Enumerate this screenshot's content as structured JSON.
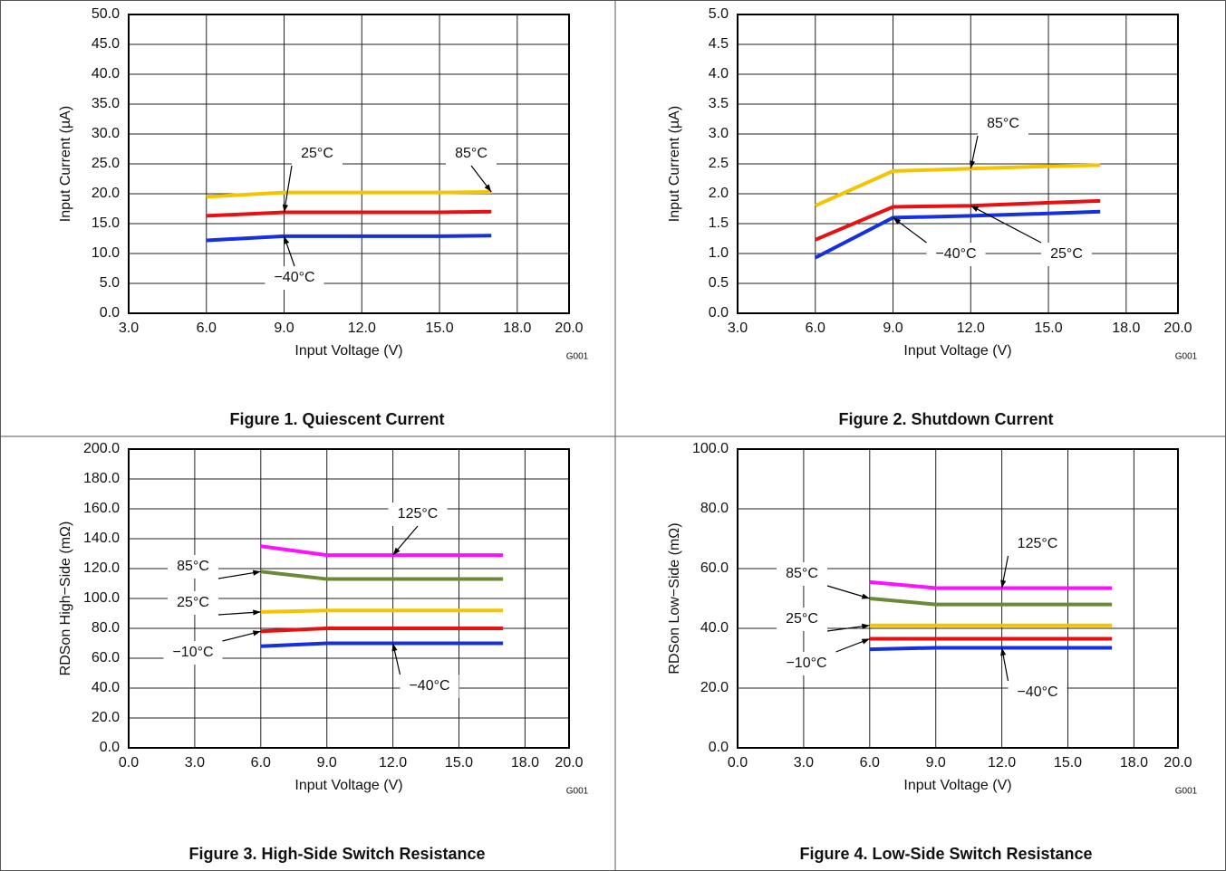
{
  "chart_data": [
    {
      "type": "line",
      "title": "Figure 1. Quiescent Current",
      "xlabel": "Input Voltage (V)",
      "ylabel": "Input Current (µA)",
      "note": "G001",
      "x": [
        6,
        9,
        12,
        15,
        17
      ],
      "series": [
        {
          "name": "85°C",
          "color": "#f5c400",
          "values": [
            19.5,
            20.2,
            20.2,
            20.2,
            20.3
          ]
        },
        {
          "name": "25°C",
          "color": "#e81010",
          "values": [
            16.3,
            16.9,
            16.9,
            16.9,
            17.0
          ]
        },
        {
          "name": "−40°C",
          "color": "#1530e0",
          "values": [
            12.2,
            12.9,
            12.9,
            12.9,
            13.0
          ]
        }
      ],
      "xlim": [
        3,
        20
      ],
      "ylim": [
        0,
        50
      ],
      "xticks": [
        {
          "value": 3,
          "label": "3.0"
        },
        {
          "value": 6,
          "label": "6.0"
        },
        {
          "value": 9,
          "label": "9.0"
        },
        {
          "value": 12,
          "label": "12.0"
        },
        {
          "value": 15,
          "label": "15.0"
        },
        {
          "value": 18,
          "label": "18.0"
        },
        {
          "value": 20,
          "label": "20.0"
        }
      ],
      "yticks": [
        {
          "value": 0,
          "label": "0.0"
        },
        {
          "value": 5,
          "label": "5.0"
        },
        {
          "value": 10,
          "label": "10.0"
        },
        {
          "value": 15,
          "label": "15.0"
        },
        {
          "value": 20,
          "label": "20.0"
        },
        {
          "value": 25,
          "label": "25.0"
        },
        {
          "value": 30,
          "label": "30.0"
        },
        {
          "value": 35,
          "label": "35.0"
        },
        {
          "value": 40,
          "label": "40.0"
        },
        {
          "value": 45,
          "label": "45.0"
        },
        {
          "value": 50,
          "label": "50.0"
        }
      ],
      "grid": true
    },
    {
      "type": "line",
      "title": "Figure 2. Shutdown Current",
      "xlabel": "Input Voltage (V)",
      "ylabel": "Input Current (µA)",
      "note": "G001",
      "x": [
        6,
        9,
        12,
        15,
        17
      ],
      "series": [
        {
          "name": "85°C",
          "color": "#f5c400",
          "values": [
            1.8,
            2.38,
            2.42,
            2.46,
            2.48
          ]
        },
        {
          "name": "25°C",
          "color": "#e81010",
          "values": [
            1.23,
            1.78,
            1.8,
            1.85,
            1.88
          ]
        },
        {
          "name": "−40°C",
          "color": "#1530e0",
          "values": [
            0.93,
            1.6,
            1.63,
            1.67,
            1.7
          ]
        }
      ],
      "xlim": [
        3,
        20
      ],
      "ylim": [
        0,
        5
      ],
      "xticks": [
        {
          "value": 3,
          "label": "3.0"
        },
        {
          "value": 6,
          "label": "6.0"
        },
        {
          "value": 9,
          "label": "9.0"
        },
        {
          "value": 12,
          "label": "12.0"
        },
        {
          "value": 15,
          "label": "15.0"
        },
        {
          "value": 18,
          "label": "18.0"
        },
        {
          "value": 20,
          "label": "20.0"
        }
      ],
      "yticks": [
        {
          "value": 0,
          "label": "0.0"
        },
        {
          "value": 0.5,
          "label": "0.5"
        },
        {
          "value": 1,
          "label": "1.0"
        },
        {
          "value": 1.5,
          "label": "1.5"
        },
        {
          "value": 2,
          "label": "2.0"
        },
        {
          "value": 2.5,
          "label": "2.5"
        },
        {
          "value": 3,
          "label": "3.0"
        },
        {
          "value": 3.5,
          "label": "3.5"
        },
        {
          "value": 4,
          "label": "4.0"
        },
        {
          "value": 4.5,
          "label": "4.5"
        },
        {
          "value": 5,
          "label": "5.0"
        }
      ],
      "grid": true
    },
    {
      "type": "line",
      "title": "Figure 3. High-Side Switch Resistance",
      "xlabel": "Input Voltage (V)",
      "ylabel": "RDSon High−Side (mΩ)",
      "note": "G001",
      "x": [
        6,
        9,
        12,
        15,
        17
      ],
      "series": [
        {
          "name": "125°C",
          "color": "#ff10ff",
          "values": [
            135,
            129,
            129,
            129,
            129
          ]
        },
        {
          "name": "85°C",
          "color": "#6a8a3a",
          "values": [
            118,
            113,
            113,
            113,
            113
          ]
        },
        {
          "name": "25°C",
          "color": "#f5c400",
          "values": [
            91,
            92,
            92,
            92,
            92
          ]
        },
        {
          "name": "−10°C",
          "color": "#e81010",
          "values": [
            78,
            80,
            80,
            80,
            80
          ]
        },
        {
          "name": "−40°C",
          "color": "#1530e0",
          "values": [
            68,
            70,
            70,
            70,
            70
          ]
        }
      ],
      "xlim": [
        0,
        20
      ],
      "ylim": [
        0,
        200
      ],
      "xticks": [
        {
          "value": 0,
          "label": "0.0"
        },
        {
          "value": 3,
          "label": "3.0"
        },
        {
          "value": 6,
          "label": "6.0"
        },
        {
          "value": 9,
          "label": "9.0"
        },
        {
          "value": 12,
          "label": "12.0"
        },
        {
          "value": 15,
          "label": "15.0"
        },
        {
          "value": 18,
          "label": "18.0"
        },
        {
          "value": 20,
          "label": "20.0"
        }
      ],
      "yticks": [
        {
          "value": 0,
          "label": "0.0"
        },
        {
          "value": 20,
          "label": "20.0"
        },
        {
          "value": 40,
          "label": "40.0"
        },
        {
          "value": 60,
          "label": "60.0"
        },
        {
          "value": 80,
          "label": "80.0"
        },
        {
          "value": 100,
          "label": "100.0"
        },
        {
          "value": 120,
          "label": "120.0"
        },
        {
          "value": 140,
          "label": "140.0"
        },
        {
          "value": 160,
          "label": "160.0"
        },
        {
          "value": 180,
          "label": "180.0"
        },
        {
          "value": 200,
          "label": "200.0"
        }
      ],
      "grid": true
    },
    {
      "type": "line",
      "title": "Figure 4. Low-Side Switch Resistance",
      "xlabel": "Input Voltage (V)",
      "ylabel": "RDSon Low−Side (mΩ)",
      "note": "G001",
      "x": [
        6,
        9,
        12,
        15,
        17
      ],
      "series": [
        {
          "name": "125°C",
          "color": "#ff10ff",
          "values": [
            55.5,
            53.5,
            53.5,
            53.5,
            53.5
          ]
        },
        {
          "name": "85°C",
          "color": "#6a8a3a",
          "values": [
            50,
            48,
            48,
            48,
            48
          ]
        },
        {
          "name": "25°C",
          "color": "#f5c400",
          "values": [
            41,
            41,
            41,
            41,
            41
          ]
        },
        {
          "name": "−10°C",
          "color": "#e81010",
          "values": [
            36.5,
            36.5,
            36.5,
            36.5,
            36.5
          ]
        },
        {
          "name": "−40°C",
          "color": "#1530e0",
          "values": [
            33,
            33.5,
            33.5,
            33.5,
            33.5
          ]
        }
      ],
      "xlim": [
        0,
        20
      ],
      "ylim": [
        0,
        100
      ],
      "xticks": [
        {
          "value": 0,
          "label": "0.0"
        },
        {
          "value": 3,
          "label": "3.0"
        },
        {
          "value": 6,
          "label": "6.0"
        },
        {
          "value": 9,
          "label": "9.0"
        },
        {
          "value": 12,
          "label": "12.0"
        },
        {
          "value": 15,
          "label": "15.0"
        },
        {
          "value": 18,
          "label": "18.0"
        },
        {
          "value": 20,
          "label": "20.0"
        }
      ],
      "yticks": [
        {
          "value": 0,
          "label": "0.0"
        },
        {
          "value": 20,
          "label": "20.0"
        },
        {
          "value": 40,
          "label": "40.0"
        },
        {
          "value": 60,
          "label": "60.0"
        },
        {
          "value": 80,
          "label": "80.0"
        },
        {
          "value": 100,
          "label": "100.0"
        }
      ],
      "grid": true
    }
  ]
}
